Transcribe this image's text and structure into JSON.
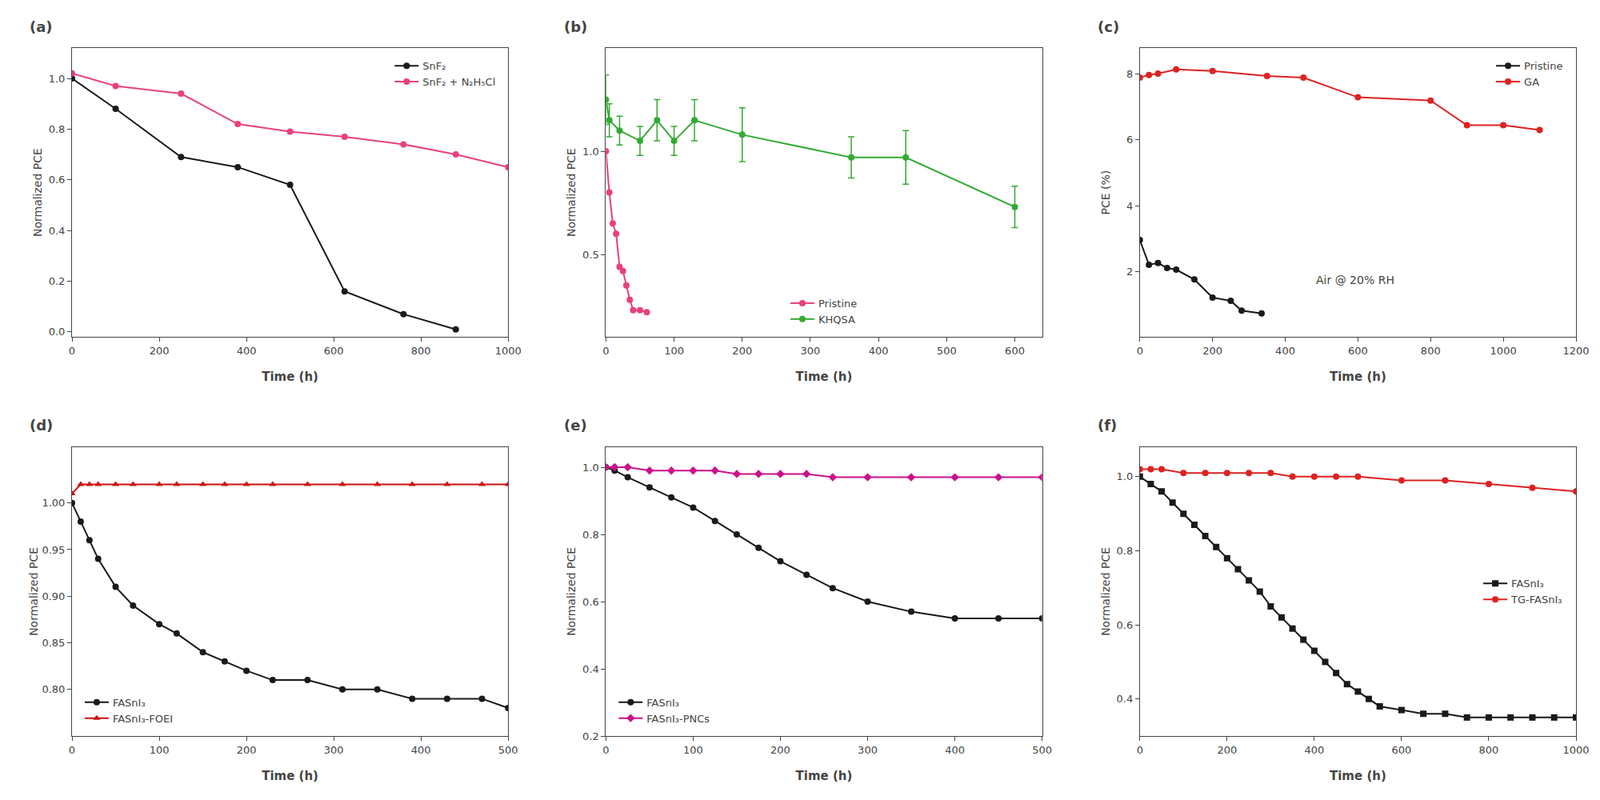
{
  "chart_data": [
    {
      "type": "line",
      "title": "(a)",
      "xlabel": "Time (h)",
      "ylabel": "Normalized PCE",
      "xlim": [
        0,
        1000
      ],
      "ylim": [
        -0.02,
        1.12
      ],
      "xticks": [
        0,
        200,
        400,
        600,
        800,
        1000
      ],
      "yticks": [
        {
          "value": 0,
          "label": "0.0"
        },
        0.2,
        0.4,
        0.6,
        0.8,
        {
          "value": 1,
          "label": "1.0"
        }
      ],
      "grid": false,
      "legend": "upper right",
      "series": [
        {
          "name": "SnF₂",
          "color": "#1a1a1a",
          "marker": "circle",
          "x": [
            0,
            100,
            250,
            380,
            500,
            625,
            760,
            880
          ],
          "values": [
            1.0,
            0.88,
            0.69,
            0.65,
            0.58,
            0.16,
            0.07,
            0.01
          ]
        },
        {
          "name": "SnF₂ + N₂H₅Cl",
          "color": "#e8417f",
          "marker": "circle",
          "x": [
            0,
            100,
            250,
            380,
            500,
            625,
            760,
            880,
            1000
          ],
          "values": [
            1.02,
            0.97,
            0.94,
            0.82,
            0.79,
            0.77,
            0.74,
            0.7,
            0.65
          ]
        }
      ]
    },
    {
      "type": "line",
      "title": "(b)",
      "xlabel": "Time (h)",
      "ylabel": "Normalized PCE",
      "xlim": [
        0,
        640
      ],
      "ylim": [
        0.1,
        1.5
      ],
      "xticks": [
        0,
        100,
        200,
        300,
        400,
        500,
        600
      ],
      "yticks": [
        0.5,
        {
          "value": 1,
          "label": "1.0"
        }
      ],
      "grid": false,
      "legend": "lower center",
      "series": [
        {
          "name": "Pristine",
          "color": "#e8417f",
          "marker": "circle",
          "x": [
            0,
            5,
            10,
            15,
            20,
            25,
            30,
            35,
            40,
            50,
            60
          ],
          "values": [
            1.0,
            0.8,
            0.65,
            0.6,
            0.44,
            0.42,
            0.35,
            0.28,
            0.23,
            0.23,
            0.22
          ]
        },
        {
          "name": "KHQSA",
          "color": "#33aa33",
          "marker": "circle",
          "x": [
            0,
            5,
            20,
            50,
            75,
            100,
            130,
            200,
            360,
            440,
            600
          ],
          "values": [
            1.25,
            1.15,
            1.1,
            1.05,
            1.15,
            1.05,
            1.15,
            1.08,
            0.97,
            0.97,
            0.73
          ],
          "yerr": [
            0.12,
            0.08,
            0.07,
            0.07,
            0.1,
            0.07,
            0.1,
            0.13,
            0.1,
            0.13,
            0.1
          ]
        }
      ]
    },
    {
      "type": "line",
      "title": "(c)",
      "xlabel": "Time (h)",
      "ylabel": "PCE (%)",
      "xlim": [
        0,
        1200
      ],
      "ylim": [
        0.0,
        8.8
      ],
      "xticks": [
        0,
        200,
        400,
        600,
        800,
        1000,
        1200
      ],
      "yticks": [
        2,
        4,
        6,
        8
      ],
      "grid": false,
      "legend": "upper right",
      "annotations": [
        {
          "text": "Air @ 20% RH",
          "x": 480,
          "y": 1.5
        }
      ],
      "series": [
        {
          "name": "Pristine",
          "color": "#1a1a1a",
          "marker": "circle",
          "x": [
            0,
            25,
            50,
            75,
            100,
            150,
            200,
            250,
            280,
            335
          ],
          "values": [
            2.95,
            2.2,
            2.25,
            2.1,
            2.05,
            1.75,
            1.2,
            1.1,
            0.8,
            0.72
          ]
        },
        {
          "name": "GA",
          "color": "#dd2222",
          "marker": "circle",
          "x": [
            0,
            25,
            50,
            100,
            200,
            350,
            450,
            600,
            800,
            900,
            1000,
            1100
          ],
          "values": [
            7.9,
            7.98,
            8.02,
            8.15,
            8.1,
            7.95,
            7.9,
            7.3,
            7.2,
            6.45,
            6.45,
            6.3
          ]
        }
      ]
    },
    {
      "type": "line",
      "title": "(d)",
      "xlabel": "Time (h)",
      "ylabel": "Normalized PCE",
      "xlim": [
        0,
        500
      ],
      "ylim": [
        0.75,
        1.06
      ],
      "xticks": [
        0,
        100,
        200,
        300,
        400,
        500
      ],
      "yticks": [
        {
          "value": 0.8,
          "label": "0.80"
        },
        0.85,
        {
          "value": 0.9,
          "label": "0.90"
        },
        0.95,
        {
          "value": 1,
          "label": "1.00"
        }
      ],
      "grid": false,
      "legend": "lower left",
      "series": [
        {
          "name": "FASnI₃",
          "color": "#1a1a1a",
          "marker": "circle",
          "x": [
            0,
            10,
            20,
            30,
            50,
            70,
            100,
            120,
            150,
            175,
            200,
            230,
            270,
            310,
            350,
            390,
            430,
            470,
            500
          ],
          "values": [
            1.0,
            0.98,
            0.96,
            0.94,
            0.91,
            0.89,
            0.87,
            0.86,
            0.84,
            0.83,
            0.82,
            0.81,
            0.81,
            0.8,
            0.8,
            0.79,
            0.79,
            0.79,
            0.78
          ]
        },
        {
          "name": "FASnI₃-FOEI",
          "color": "#cc1111",
          "marker": "triangle",
          "x": [
            0,
            10,
            20,
            30,
            50,
            70,
            100,
            120,
            150,
            175,
            200,
            230,
            270,
            310,
            350,
            390,
            430,
            470,
            500
          ],
          "values": [
            1.01,
            1.02,
            1.02,
            1.02,
            1.02,
            1.02,
            1.02,
            1.02,
            1.02,
            1.02,
            1.02,
            1.02,
            1.02,
            1.02,
            1.02,
            1.02,
            1.02,
            1.02,
            1.02
          ]
        }
      ]
    },
    {
      "type": "line",
      "title": "(e)",
      "xlabel": "Time (h)",
      "ylabel": "Normalized PCE",
      "xlim": [
        0,
        500
      ],
      "ylim": [
        0.2,
        1.06
      ],
      "xticks": [
        0,
        100,
        200,
        300,
        400,
        500
      ],
      "yticks": [
        0.2,
        0.4,
        0.6,
        0.8,
        {
          "value": 1,
          "label": "1.0"
        }
      ],
      "grid": false,
      "legend": "lower left",
      "series": [
        {
          "name": "FASnI₃",
          "color": "#1a1a1a",
          "marker": "circle",
          "x": [
            0,
            10,
            25,
            50,
            75,
            100,
            125,
            150,
            175,
            200,
            230,
            260,
            300,
            350,
            400,
            450,
            500
          ],
          "values": [
            1.0,
            0.99,
            0.97,
            0.94,
            0.91,
            0.88,
            0.84,
            0.8,
            0.76,
            0.72,
            0.68,
            0.64,
            0.6,
            0.57,
            0.55,
            0.55,
            0.55
          ]
        },
        {
          "name": "FASnI₃-PNCs",
          "color": "#cc1188",
          "marker": "diamond",
          "x": [
            0,
            10,
            25,
            50,
            75,
            100,
            125,
            150,
            175,
            200,
            230,
            260,
            300,
            350,
            400,
            450,
            500
          ],
          "values": [
            1.0,
            1.0,
            1.0,
            0.99,
            0.99,
            0.99,
            0.99,
            0.98,
            0.98,
            0.98,
            0.98,
            0.97,
            0.97,
            0.97,
            0.97,
            0.97,
            0.97
          ]
        }
      ]
    },
    {
      "type": "line",
      "title": "(f)",
      "xlabel": "Time (h)",
      "ylabel": "Normalized PCE",
      "xlim": [
        0,
        1000
      ],
      "ylim": [
        0.3,
        1.08
      ],
      "xticks": [
        0,
        200,
        400,
        600,
        800,
        1000
      ],
      "yticks": [
        0.4,
        0.6,
        0.8,
        {
          "value": 1,
          "label": "1.0"
        }
      ],
      "grid": false,
      "legend": "center right",
      "series": [
        {
          "name": "FASnI₃",
          "color": "#1a1a1a",
          "marker": "square",
          "x": [
            0,
            25,
            50,
            75,
            100,
            125,
            150,
            175,
            200,
            225,
            250,
            275,
            300,
            325,
            350,
            375,
            400,
            425,
            450,
            475,
            500,
            525,
            550,
            600,
            650,
            700,
            750,
            800,
            850,
            900,
            950,
            1000
          ],
          "values": [
            1.0,
            0.98,
            0.96,
            0.93,
            0.9,
            0.87,
            0.84,
            0.81,
            0.78,
            0.75,
            0.72,
            0.69,
            0.65,
            0.62,
            0.59,
            0.56,
            0.53,
            0.5,
            0.47,
            0.44,
            0.42,
            0.4,
            0.38,
            0.37,
            0.36,
            0.36,
            0.35,
            0.35,
            0.35,
            0.35,
            0.35,
            0.35
          ]
        },
        {
          "name": "TG-FASnI₃",
          "color": "#dd2222",
          "marker": "circle",
          "x": [
            0,
            25,
            50,
            100,
            150,
            200,
            250,
            300,
            350,
            400,
            450,
            500,
            600,
            700,
            800,
            900,
            1000
          ],
          "values": [
            1.02,
            1.02,
            1.02,
            1.01,
            1.01,
            1.01,
            1.01,
            1.01,
            1.0,
            1.0,
            1.0,
            1.0,
            0.99,
            0.99,
            0.98,
            0.97,
            0.96
          ]
        }
      ]
    }
  ]
}
